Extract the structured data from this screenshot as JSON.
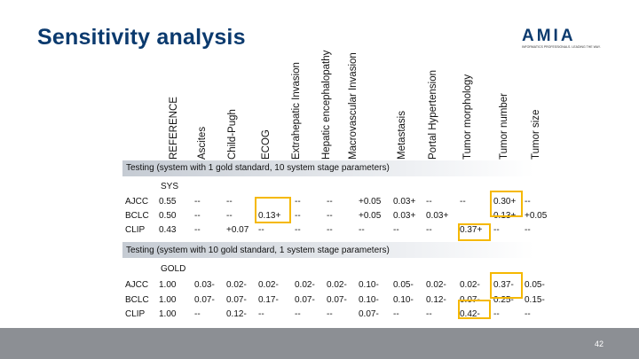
{
  "title": "Sensitivity analysis",
  "logo": {
    "word": "AMIA",
    "tagline": "INFORMATICS PROFESSIONALS. LEADING THE WAY.",
    "accent": "#e8512a",
    "brand": "#0b3a6e"
  },
  "headers": [
    "REFERENCE",
    "Ascites",
    "Child-Pugh",
    "ECOG",
    "Extrahepatic Invasion",
    "Hepatic encephalopathy",
    "Macrovascular Invasion",
    "Metastasis",
    "Portal Hypertension",
    "Tumor morphology",
    "Tumor number",
    "Tumor size"
  ],
  "section1": {
    "label": "Testing (system with 1 gold standard, 10 system stage parameters)",
    "gold_label": "SYS",
    "rows": [
      {
        "name": "AJCC",
        "cells": [
          "0.55",
          "--",
          "--",
          "",
          "--",
          "--",
          "+0.05",
          "0.03+",
          "--",
          "--",
          "0.30+",
          "--"
        ]
      },
      {
        "name": "BCLC",
        "cells": [
          "0.50",
          "--",
          "--",
          "0.13+",
          "--",
          "--",
          "+0.05",
          "0.03+",
          "0.03+",
          "",
          "0.13+",
          "+0.05"
        ]
      },
      {
        "name": "CLIP",
        "cells": [
          "0.43",
          "--",
          "+0.07",
          "--",
          "--",
          "--",
          "--",
          "--",
          "--",
          "0.37+",
          "--",
          "--"
        ]
      }
    ]
  },
  "section2": {
    "label": "Testing (system with 10 gold standard, 1 system stage parameters)",
    "gold_label": "GOLD",
    "rows": [
      {
        "name": "AJCC",
        "cells": [
          "1.00",
          "0.03-",
          "0.02-",
          "0.02-",
          "0.02-",
          "0.02-",
          "0.10-",
          "0.05-",
          "0.02-",
          "0.02-",
          "0.37-",
          "0.05-"
        ]
      },
      {
        "name": "BCLC",
        "cells": [
          "1.00",
          "0.07-",
          "0.07-",
          "0.17-",
          "0.07-",
          "0.07-",
          "0.10-",
          "0.10-",
          "0.12-",
          "0.07-",
          "0.25-",
          "0.15-"
        ]
      },
      {
        "name": "CLIP",
        "cells": [
          "1.00",
          "--",
          "0.12-",
          "--",
          "--",
          "--",
          "0.07-",
          "--",
          "--",
          "0.42-",
          "--",
          "--"
        ]
      }
    ]
  },
  "page_number": "42",
  "colors": {
    "highlight": "#f5b800",
    "band": "#c5cbd3",
    "footer": "#8c8f94"
  }
}
